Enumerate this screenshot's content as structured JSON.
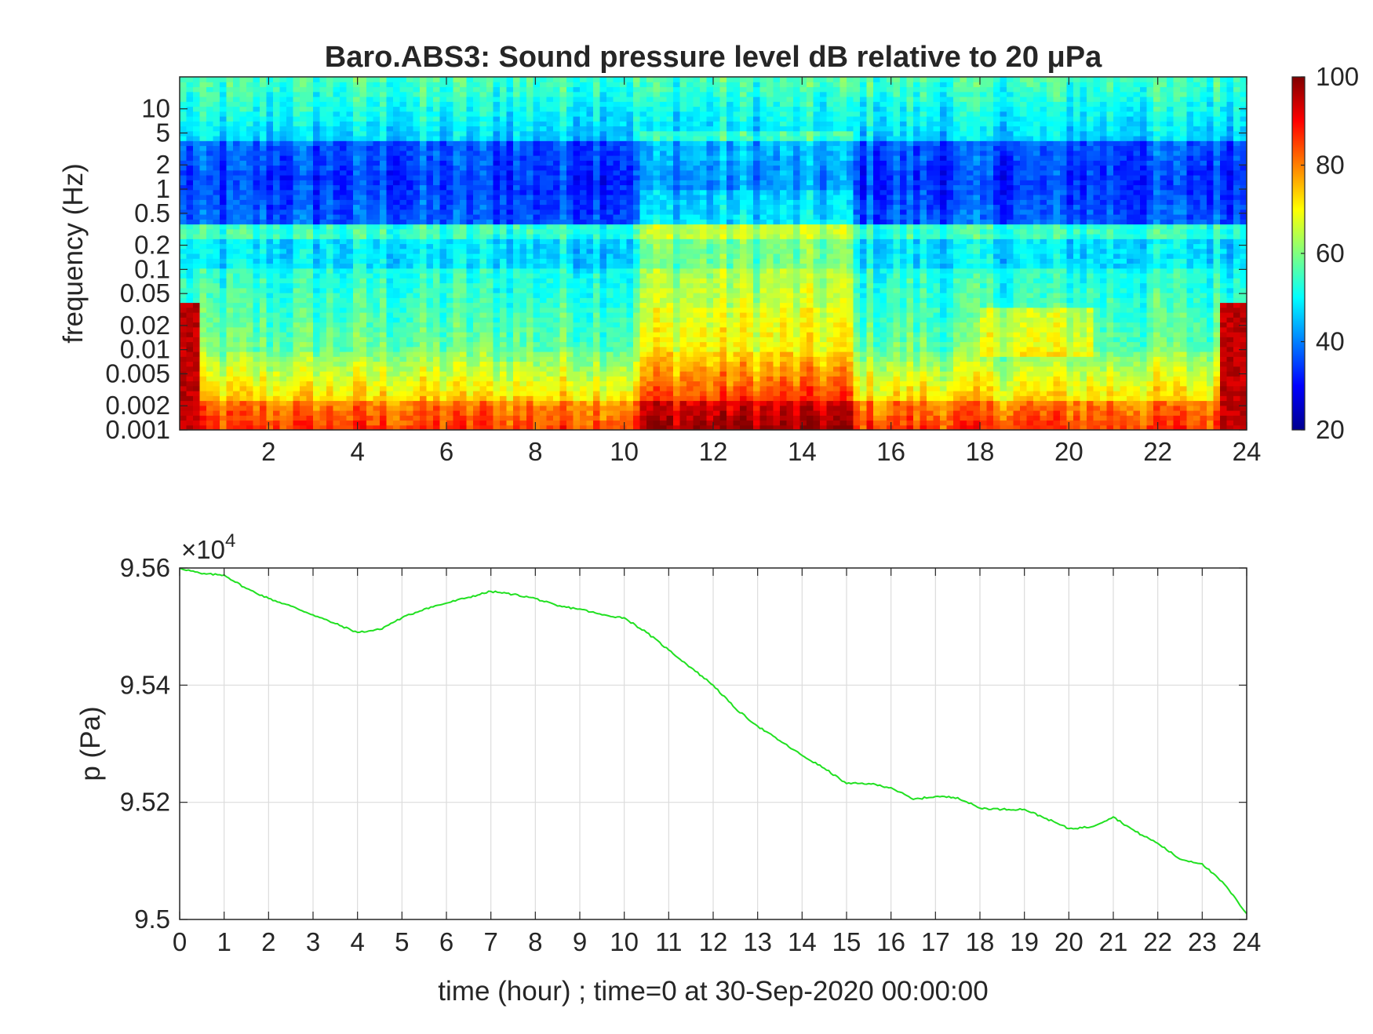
{
  "chart_data": [
    {
      "type": "heatmap",
      "title": "Baro.ABS3: Sound pressure level dB relative to 20 μPa",
      "xlabel": "",
      "ylabel": "frequency (Hz)",
      "y_scale": "log",
      "xlim": [
        0,
        24
      ],
      "ylim": [
        0.001,
        25
      ],
      "xticks": [
        2,
        4,
        6,
        8,
        10,
        12,
        14,
        16,
        18,
        20,
        22,
        24
      ],
      "yticks": [
        0.001,
        0.002,
        0.005,
        0.01,
        0.02,
        0.05,
        0.1,
        0.2,
        0.5,
        1,
        2,
        5,
        10
      ],
      "ytick_labels": [
        "0.001",
        "0.002",
        "0.005",
        "0.01",
        "0.02",
        "0.05",
        "0.1",
        "0.2",
        "0.5",
        "1",
        "2",
        "5",
        "10"
      ],
      "colorbar": {
        "min": 20,
        "max": 100,
        "ticks": [
          20,
          40,
          60,
          80,
          100
        ],
        "colormap": "jet",
        "position": "right"
      },
      "grid": false
    },
    {
      "type": "line",
      "xlabel": "time (hour) ; time=0 at 30-Sep-2020 00:00:00",
      "ylabel": "p (Pa)",
      "y_multiplier_label": "×10",
      "y_multiplier_exponent": "4",
      "xlim": [
        0,
        24
      ],
      "ylim": [
        95000,
        95600
      ],
      "xticks": [
        0,
        1,
        2,
        3,
        4,
        5,
        6,
        7,
        8,
        9,
        10,
        11,
        12,
        13,
        14,
        15,
        16,
        17,
        18,
        19,
        20,
        21,
        22,
        23,
        24
      ],
      "yticks": [
        95000,
        95200,
        95400,
        95600
      ],
      "ytick_labels": [
        "9.5",
        "9.52",
        "9.54",
        "9.56"
      ],
      "grid": true,
      "line_color": "#21e021",
      "series": [
        {
          "x": [
            0,
            0.5,
            1,
            1.5,
            2,
            2.5,
            3,
            3.5,
            4,
            4.5,
            5,
            5.5,
            6,
            6.5,
            7,
            7.5,
            8,
            8.5,
            9,
            9.5,
            10,
            10.5,
            11,
            11.5,
            12,
            12.5,
            13,
            13.5,
            14,
            14.5,
            15,
            15.5,
            16,
            16.5,
            17,
            17.5,
            18,
            18.5,
            19,
            19.5,
            20,
            20.5,
            21,
            21.5,
            22,
            22.5,
            23,
            23.5,
            24
          ],
          "y": [
            95600,
            95590,
            95588,
            95565,
            95548,
            95535,
            95520,
            95505,
            95490,
            95495,
            95515,
            95530,
            95540,
            95550,
            95560,
            95555,
            95548,
            95535,
            95530,
            95520,
            95515,
            95490,
            95460,
            95430,
            95400,
            95360,
            95330,
            95305,
            95280,
            95258,
            95232,
            95232,
            95225,
            95205,
            95210,
            95208,
            95190,
            95188,
            95188,
            95172,
            95155,
            95158,
            95175,
            95150,
            95130,
            95103,
            95095,
            95060,
            95010
          ]
        }
      ]
    }
  ]
}
